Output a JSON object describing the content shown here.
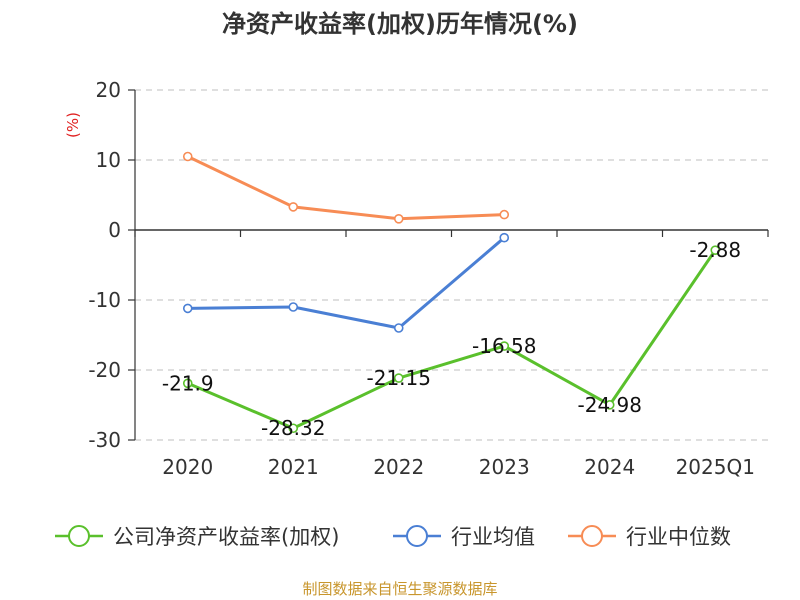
{
  "chart_data": {
    "type": "line",
    "title": "净资产收益率(加权)历年情况(%)",
    "ylabel": "(%)",
    "categories": [
      "2020",
      "2021",
      "2022",
      "2023",
      "2024",
      "2025Q1"
    ],
    "ylim": [
      -30,
      20
    ],
    "yticks": [
      20,
      10,
      0,
      -10,
      -20,
      -30
    ],
    "grid": true,
    "legend_position": "bottom",
    "series": [
      {
        "name": "公司净资产收益率(加权)",
        "color": "#5ac02c",
        "values": [
          -21.9,
          -28.32,
          -21.15,
          -16.58,
          -24.98,
          -2.88
        ],
        "labels": [
          "-21.9",
          "-28.32",
          "-21.15",
          "-16.58",
          "-24.98",
          "-2.88"
        ]
      },
      {
        "name": "行业均值",
        "color": "#4a7fd4",
        "values": [
          -11.2,
          -11.0,
          -14.0,
          -1.1,
          null,
          null
        ]
      },
      {
        "name": "行业中位数",
        "color": "#f78c55",
        "values": [
          10.5,
          3.3,
          1.6,
          2.2,
          null,
          null
        ]
      }
    ]
  },
  "source_text": "制图数据来自恒生聚源数据库"
}
